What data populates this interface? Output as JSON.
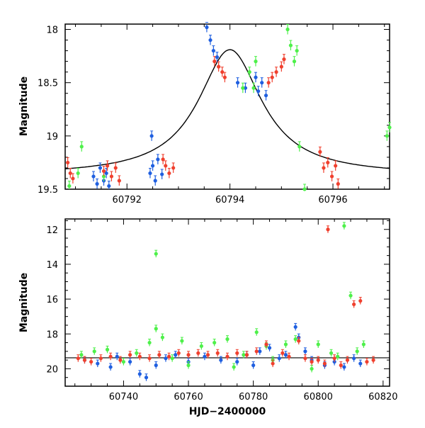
{
  "colors": {
    "blue": "#1f5fe0",
    "green": "#4ef04a",
    "red": "#f0402e",
    "model": "#000000"
  },
  "chart_data": [
    {
      "type": "scatter",
      "xlabel": "",
      "ylabel": "Magnitude",
      "xlim": [
        60790.8,
        60797.1
      ],
      "ylim": [
        19.5,
        17.95
      ],
      "y_inverted": true,
      "xticks": [
        60792,
        60794,
        60796
      ],
      "yticks": [
        18,
        18.5,
        19,
        19.5
      ],
      "model_curve": {
        "type": "lorentzian",
        "peak_x": 60794.0,
        "peak_mag": 18.19,
        "base_mag": 19.37
      },
      "series": [
        {
          "color_key": "blue",
          "points": [
            [
              60791.35,
              19.38
            ],
            [
              60791.42,
              19.45
            ],
            [
              60791.48,
              19.3
            ],
            [
              60791.55,
              19.42
            ],
            [
              60791.6,
              19.35
            ],
            [
              60791.65,
              19.47
            ],
            [
              60792.45,
              19.35
            ],
            [
              60792.5,
              19.28
            ],
            [
              60792.55,
              19.42
            ],
            [
              60792.6,
              19.22
            ],
            [
              60792.68,
              19.36
            ],
            [
              60792.48,
              19.0
            ],
            [
              60793.55,
              17.98
            ],
            [
              60793.62,
              18.1
            ],
            [
              60793.68,
              18.2
            ],
            [
              60793.75,
              18.26
            ],
            [
              60794.15,
              18.5
            ],
            [
              60794.3,
              18.55
            ],
            [
              60794.5,
              18.45
            ],
            [
              60794.55,
              18.58
            ],
            [
              60794.62,
              18.5
            ],
            [
              60794.7,
              18.62
            ]
          ]
        },
        {
          "color_key": "green",
          "points": [
            [
              60790.88,
              19.47
            ],
            [
              60791.05,
              19.35
            ],
            [
              60791.12,
              19.1
            ],
            [
              60791.55,
              19.38
            ],
            [
              60794.25,
              18.55
            ],
            [
              60794.38,
              18.4
            ],
            [
              60794.46,
              18.55
            ],
            [
              60794.5,
              18.3
            ],
            [
              60795.12,
              18.0
            ],
            [
              60795.18,
              18.15
            ],
            [
              60795.25,
              18.3
            ],
            [
              60795.3,
              18.2
            ],
            [
              60795.35,
              19.1
            ],
            [
              60795.45,
              19.5
            ],
            [
              60797.05,
              19.0
            ],
            [
              60797.1,
              18.92
            ]
          ]
        },
        {
          "color_key": "red",
          "points": [
            [
              60790.85,
              19.25
            ],
            [
              60790.9,
              19.35
            ],
            [
              60790.95,
              19.4
            ],
            [
              60791.55,
              19.33
            ],
            [
              60791.62,
              19.28
            ],
            [
              60791.7,
              19.38
            ],
            [
              60791.78,
              19.3
            ],
            [
              60791.85,
              19.42
            ],
            [
              60792.7,
              19.22
            ],
            [
              60792.75,
              19.28
            ],
            [
              60792.82,
              19.35
            ],
            [
              60792.9,
              19.3
            ],
            [
              60793.7,
              18.3
            ],
            [
              60793.78,
              18.35
            ],
            [
              60793.85,
              18.4
            ],
            [
              60793.9,
              18.45
            ],
            [
              60794.75,
              18.5
            ],
            [
              60794.82,
              18.45
            ],
            [
              60794.9,
              18.4
            ],
            [
              60795.0,
              18.35
            ],
            [
              60795.05,
              18.28
            ],
            [
              60795.75,
              19.15
            ],
            [
              60795.82,
              19.3
            ],
            [
              60795.9,
              19.25
            ],
            [
              60795.98,
              19.38
            ],
            [
              60796.05,
              19.28
            ],
            [
              60796.1,
              19.45
            ]
          ]
        }
      ]
    },
    {
      "type": "scatter",
      "xlabel": "HJD−2400000",
      "ylabel": "Magnitude",
      "xlim": [
        60722,
        60822
      ],
      "ylim": [
        21.0,
        11.4
      ],
      "y_inverted": true,
      "xticks": [
        60740,
        60760,
        60780,
        60800,
        60820
      ],
      "yticks": [
        12,
        14,
        16,
        18,
        20
      ],
      "baseline_mag": 19.37,
      "series": [
        {
          "color_key": "blue",
          "points": [
            [
              60728,
              19.5
            ],
            [
              60732,
              19.7
            ],
            [
              60736,
              19.9
            ],
            [
              60738,
              19.3
            ],
            [
              60742,
              19.6
            ],
            [
              60745,
              20.3
            ],
            [
              60747,
              20.5
            ],
            [
              60750,
              19.8
            ],
            [
              60753,
              19.4
            ],
            [
              60756,
              19.2
            ],
            [
              60760,
              19.6
            ],
            [
              60765,
              19.3
            ],
            [
              60770,
              19.5
            ],
            [
              60775,
              19.6
            ],
            [
              60778,
              19.2
            ],
            [
              60780,
              19.8
            ],
            [
              60782,
              19.0
            ],
            [
              60785,
              18.8
            ],
            [
              60788,
              19.4
            ],
            [
              60790,
              19.2
            ],
            [
              60793,
              17.6
            ],
            [
              60794,
              18.2
            ],
            [
              60796,
              19.0
            ],
            [
              60798,
              19.5
            ],
            [
              60802,
              19.8
            ],
            [
              60805,
              19.6
            ],
            [
              60808,
              19.9
            ],
            [
              60811,
              19.4
            ],
            [
              60813,
              19.7
            ]
          ]
        },
        {
          "color_key": "green",
          "points": [
            [
              60727,
              19.2
            ],
            [
              60731,
              19.0
            ],
            [
              60735,
              18.9
            ],
            [
              60740,
              19.6
            ],
            [
              60744,
              19.1
            ],
            [
              60748,
              18.5
            ],
            [
              60750,
              13.4
            ],
            [
              60750,
              17.7
            ],
            [
              60752,
              18.2
            ],
            [
              60755,
              19.4
            ],
            [
              60758,
              18.4
            ],
            [
              60760,
              19.8
            ],
            [
              60764,
              18.7
            ],
            [
              60768,
              18.5
            ],
            [
              60772,
              18.3
            ],
            [
              60774,
              19.9
            ],
            [
              60777,
              19.2
            ],
            [
              60781,
              17.9
            ],
            [
              60784,
              18.7
            ],
            [
              60786,
              19.5
            ],
            [
              60790,
              18.6
            ],
            [
              60793,
              18.3
            ],
            [
              60798,
              20.0
            ],
            [
              60800,
              18.6
            ],
            [
              60804,
              19.1
            ],
            [
              60806,
              19.3
            ],
            [
              60808,
              11.8
            ],
            [
              60810,
              15.8
            ],
            [
              60812,
              19.0
            ],
            [
              60814,
              18.6
            ]
          ]
        },
        {
          "color_key": "red",
          "points": [
            [
              60726,
              19.4
            ],
            [
              60728,
              19.5
            ],
            [
              60730,
              19.6
            ],
            [
              60733,
              19.4
            ],
            [
              60736,
              19.3
            ],
            [
              60739,
              19.5
            ],
            [
              60742,
              19.2
            ],
            [
              60745,
              19.3
            ],
            [
              60748,
              19.4
            ],
            [
              60751,
              19.2
            ],
            [
              60754,
              19.3
            ],
            [
              60757,
              19.1
            ],
            [
              60760,
              19.2
            ],
            [
              60763,
              19.1
            ],
            [
              60766,
              19.2
            ],
            [
              60769,
              19.1
            ],
            [
              60772,
              19.3
            ],
            [
              60775,
              19.1
            ],
            [
              60778,
              19.2
            ],
            [
              60781,
              19.0
            ],
            [
              60784,
              18.6
            ],
            [
              60786,
              19.7
            ],
            [
              60789,
              19.1
            ],
            [
              60791,
              19.3
            ],
            [
              60794,
              18.4
            ],
            [
              60796,
              19.4
            ],
            [
              60798,
              19.6
            ],
            [
              60800,
              19.5
            ],
            [
              60802,
              19.7
            ],
            [
              60803,
              12.0
            ],
            [
              60805,
              19.4
            ],
            [
              60807,
              19.8
            ],
            [
              60809,
              19.5
            ],
            [
              60811,
              16.3
            ],
            [
              60813,
              16.1
            ],
            [
              60815,
              19.6
            ],
            [
              60817,
              19.5
            ]
          ]
        }
      ]
    }
  ]
}
